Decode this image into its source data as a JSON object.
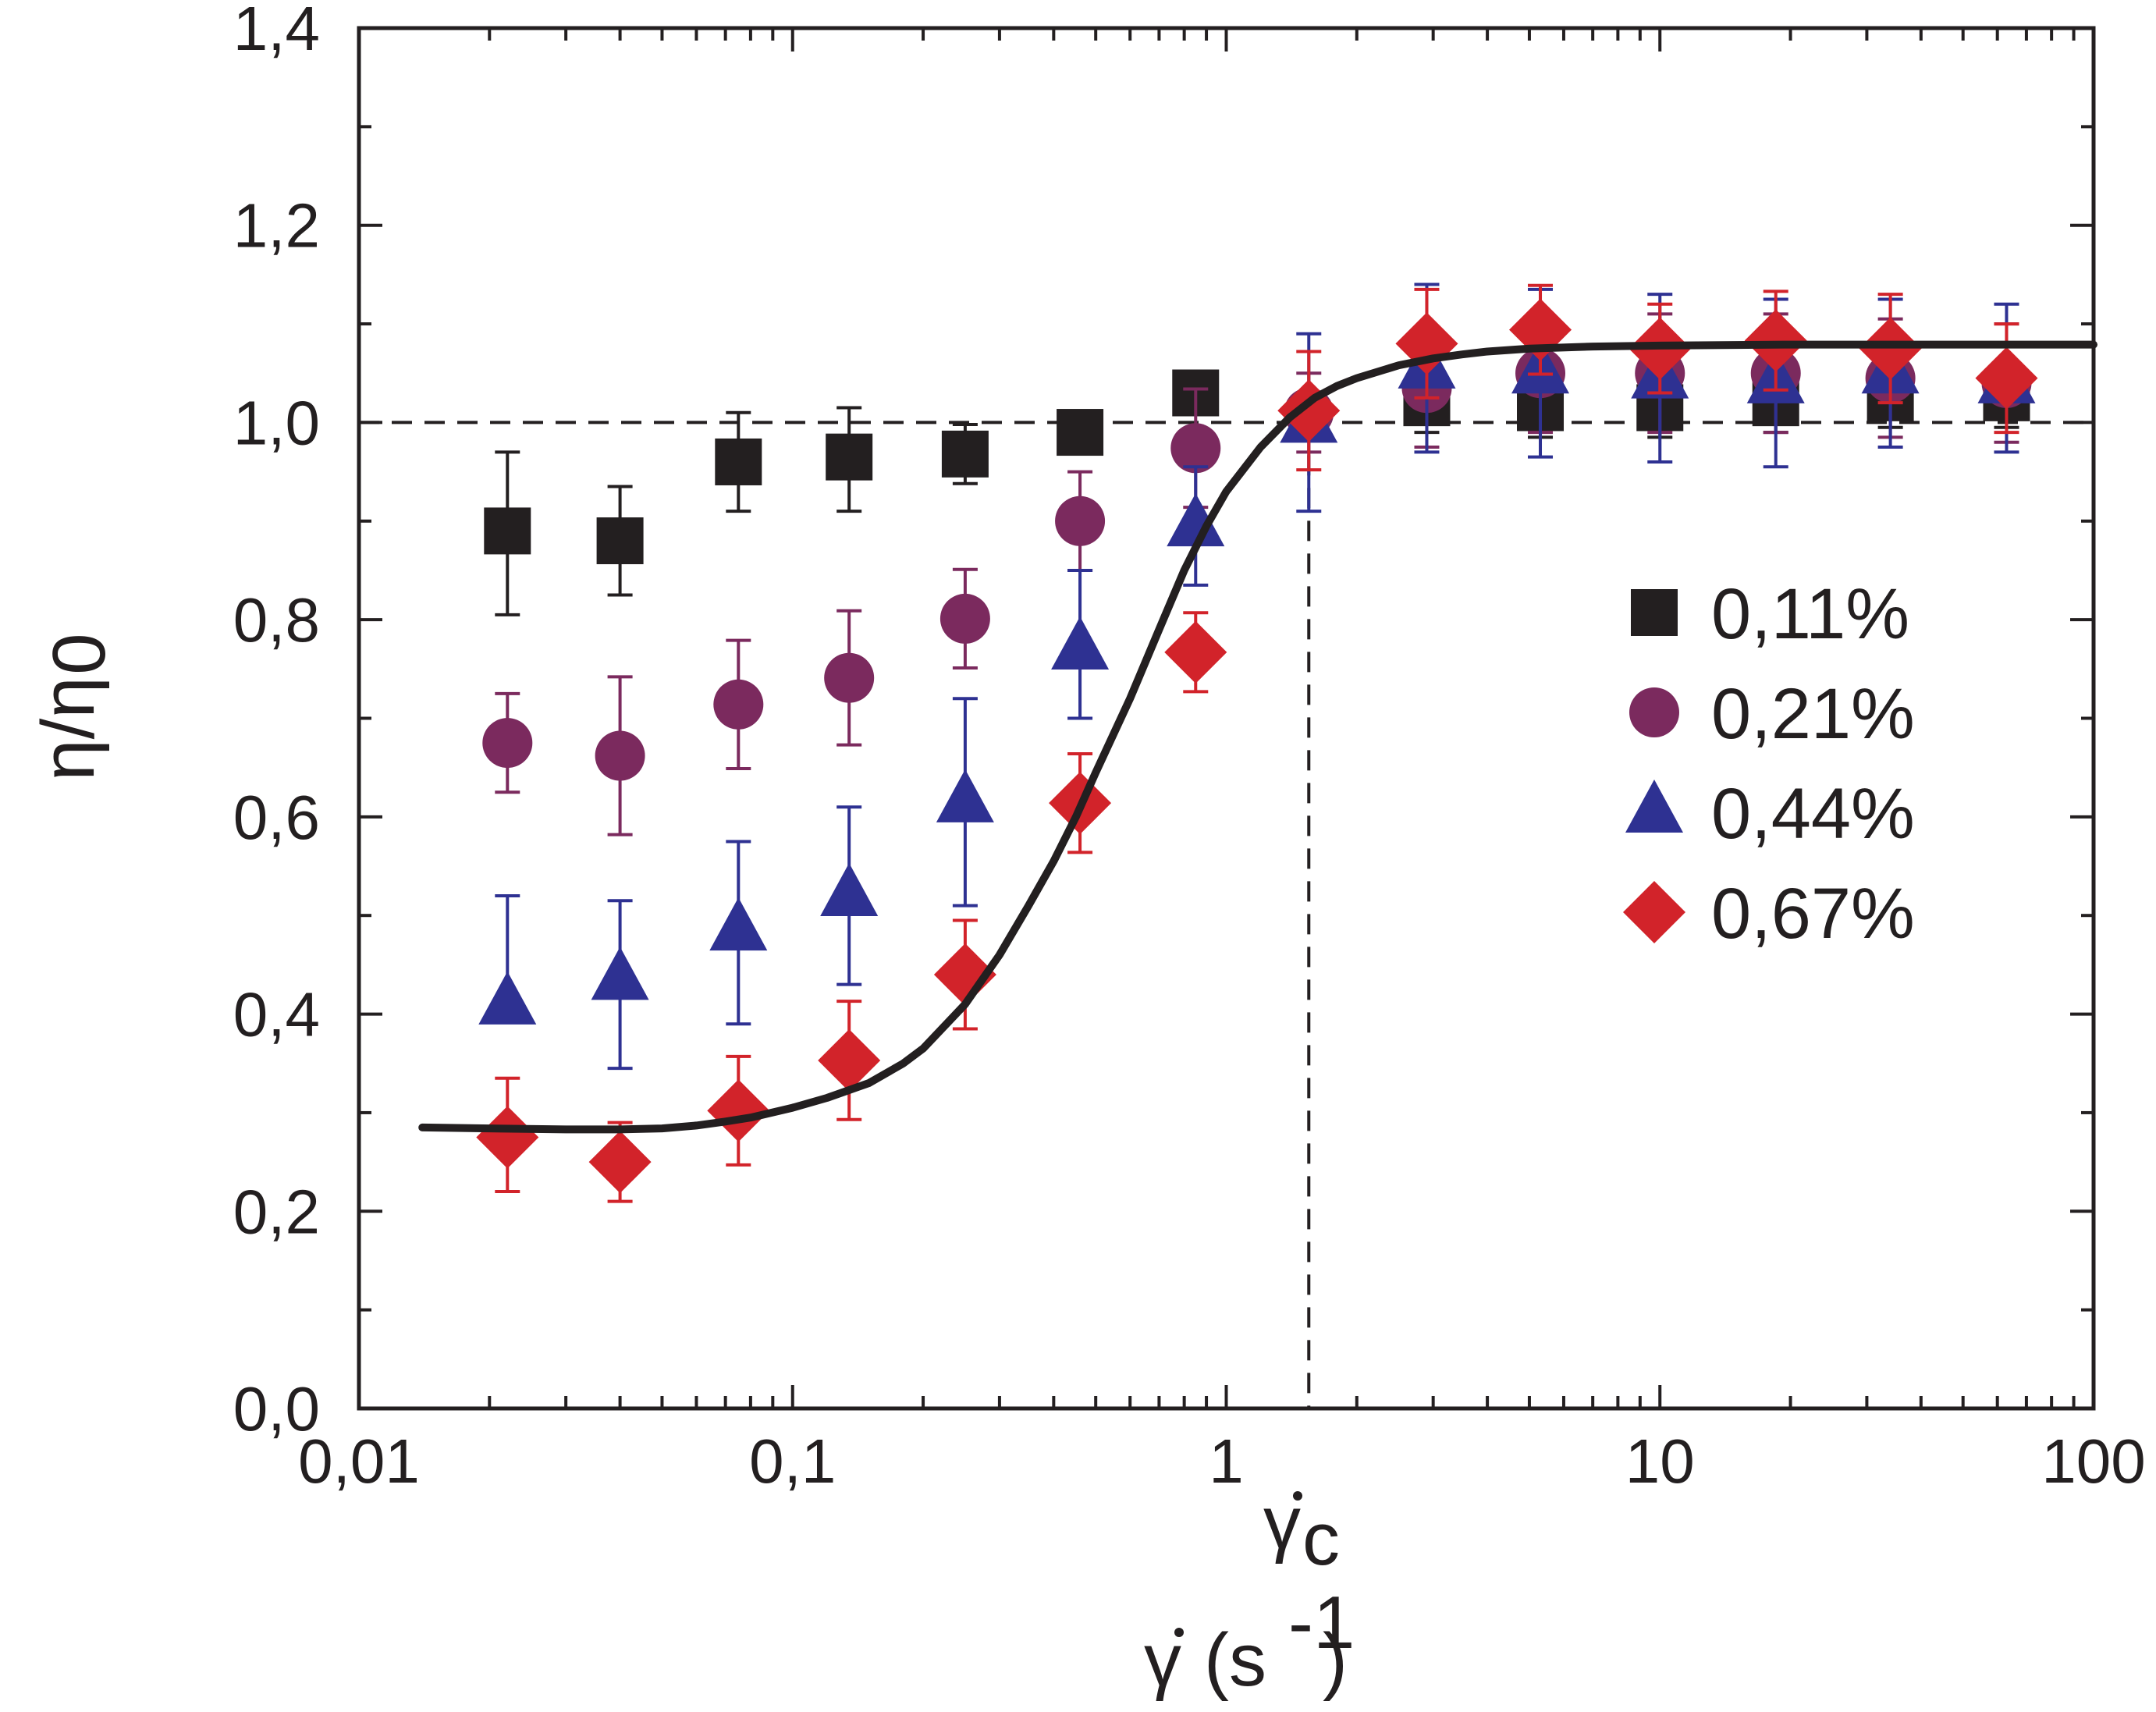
{
  "chart_data": {
    "type": "scatter",
    "title": "",
    "xlabel": {
      "symbol": "γ",
      "unit_open": "(s",
      "unit_exp": "-1",
      "unit_close": ")"
    },
    "ylabel": {
      "main": "η/η",
      "sub": "0"
    },
    "xscale": "log",
    "xlim": [
      0.01,
      100
    ],
    "ylim": [
      0.0,
      1.4
    ],
    "x_tick_values": [
      0.01,
      0.1,
      1,
      10,
      100
    ],
    "x_tick_labels": [
      "0,01",
      "0,1",
      "1",
      "10",
      "100"
    ],
    "y_tick_values": [
      0.0,
      0.2,
      0.4,
      0.6,
      0.8,
      1.0,
      1.2,
      1.4
    ],
    "y_tick_labels": [
      "0,0",
      "0,2",
      "0,4",
      "0,6",
      "0,8",
      "1,0",
      "1,2",
      "1,4"
    ],
    "reference_lines": {
      "horizontal_y": 1.0,
      "vertical_x": 1.55,
      "vertical_label": {
        "symbol": "γ",
        "sub": "c"
      }
    },
    "legend_position": "right",
    "x": [
      0.022,
      0.04,
      0.075,
      0.135,
      0.25,
      0.46,
      0.85,
      1.55,
      2.9,
      5.3,
      10,
      18.5,
      34,
      63
    ],
    "series": [
      {
        "name": "0,11%",
        "marker": "square",
        "color": "#231f20",
        "values": [
          0.89,
          0.88,
          0.96,
          0.965,
          0.968,
          0.99,
          1.03,
          null,
          1.02,
          1.015,
          1.015,
          1.02,
          1.025,
          1.025
        ],
        "err_up": [
          0.08,
          0.055,
          0.05,
          0.05,
          0.03,
          0.0,
          0.0,
          null,
          0.03,
          0.03,
          0.03,
          0.03,
          0.03,
          0.03
        ],
        "err_down": [
          0.085,
          0.055,
          0.05,
          0.055,
          0.03,
          0.0,
          0.0,
          null,
          0.03,
          0.03,
          0.03,
          0.03,
          0.03,
          0.03
        ]
      },
      {
        "name": "0,21%",
        "marker": "circle",
        "color": "#7b2a5e",
        "values": [
          0.675,
          0.662,
          0.714,
          0.741,
          0.801,
          0.9,
          0.974,
          1.01,
          1.035,
          1.05,
          1.05,
          1.05,
          1.045,
          1.04
        ],
        "err_up": [
          0.05,
          0.08,
          0.065,
          0.068,
          0.05,
          0.05,
          0.06,
          0.04,
          0.06,
          0.06,
          0.06,
          0.06,
          0.06,
          0.06
        ],
        "err_down": [
          0.05,
          0.08,
          0.065,
          0.068,
          0.05,
          0.05,
          0.06,
          0.04,
          0.06,
          0.06,
          0.06,
          0.06,
          0.06,
          0.06
        ]
      },
      {
        "name": "0,44%",
        "marker": "triangle",
        "color": "#2e3192",
        "values": [
          0.41,
          0.435,
          0.485,
          0.52,
          0.615,
          0.77,
          0.895,
          1.0,
          1.055,
          1.05,
          1.045,
          1.04,
          1.05,
          1.04
        ],
        "err_up": [
          0.11,
          0.08,
          0.09,
          0.09,
          0.105,
          0.08,
          0.06,
          0.09,
          0.085,
          0.085,
          0.085,
          0.085,
          0.075,
          0.08
        ],
        "err_down": [
          0.0,
          0.09,
          0.095,
          0.09,
          0.105,
          0.07,
          0.06,
          0.09,
          0.085,
          0.085,
          0.085,
          0.085,
          0.075,
          0.07
        ]
      },
      {
        "name": "0,67%",
        "marker": "diamond",
        "color": "#d2232a",
        "values": [
          0.275,
          0.25,
          0.302,
          0.353,
          0.44,
          0.614,
          0.767,
          1.012,
          1.08,
          1.094,
          1.075,
          1.083,
          1.075,
          1.045
        ],
        "err_up": [
          0.06,
          0.04,
          0.055,
          0.06,
          0.055,
          0.05,
          0.04,
          0.06,
          0.055,
          0.045,
          0.045,
          0.05,
          0.055,
          0.055
        ],
        "err_down": [
          0.055,
          0.04,
          0.055,
          0.06,
          0.055,
          0.05,
          0.04,
          0.06,
          0.055,
          0.045,
          0.045,
          0.05,
          0.055,
          0.055
        ]
      }
    ],
    "fit_curve": {
      "name": "fit",
      "color": "#231f20",
      "x": [
        0.014,
        0.02,
        0.03,
        0.04,
        0.05,
        0.06,
        0.07,
        0.08,
        0.1,
        0.12,
        0.15,
        0.18,
        0.2,
        0.25,
        0.3,
        0.35,
        0.4,
        0.45,
        0.5,
        0.6,
        0.7,
        0.8,
        0.9,
        1.0,
        1.2,
        1.4,
        1.6,
        1.8,
        2.0,
        2.5,
        3.0,
        3.5,
        4.0,
        5.0,
        7.0,
        10,
        20,
        40,
        100
      ],
      "y": [
        0.285,
        0.284,
        0.283,
        0.283,
        0.284,
        0.287,
        0.291,
        0.295,
        0.305,
        0.315,
        0.33,
        0.35,
        0.365,
        0.41,
        0.46,
        0.51,
        0.555,
        0.6,
        0.645,
        0.72,
        0.79,
        0.85,
        0.895,
        0.93,
        0.975,
        1.005,
        1.025,
        1.037,
        1.045,
        1.058,
        1.065,
        1.069,
        1.072,
        1.075,
        1.077,
        1.078,
        1.079,
        1.079,
        1.079
      ]
    }
  }
}
